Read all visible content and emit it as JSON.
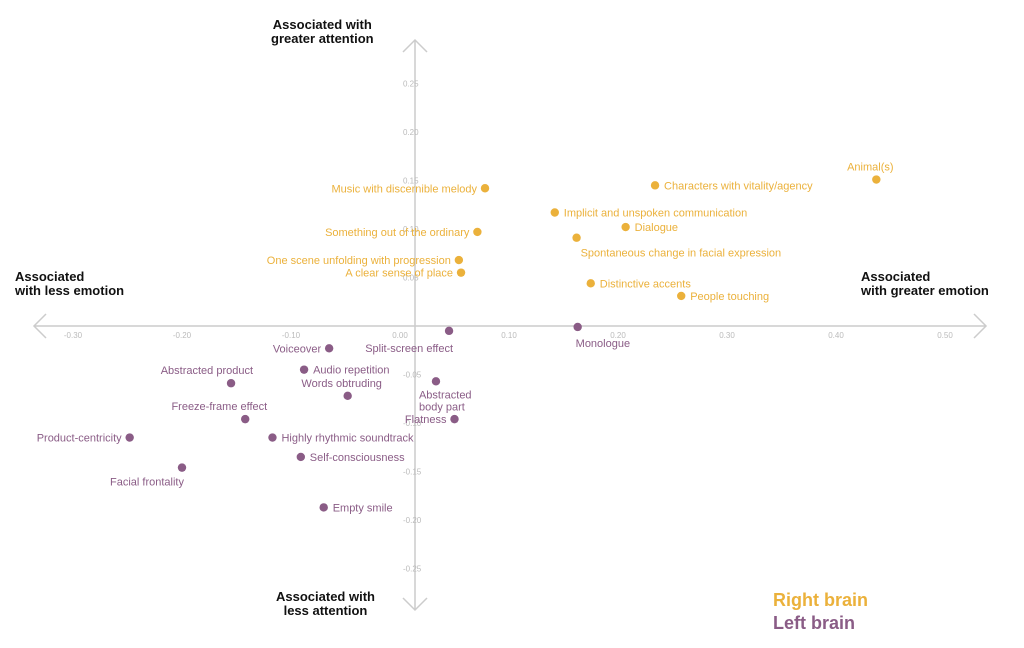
{
  "colors": {
    "right_brain": "#EBB13B",
    "left_brain": "#8A5C86",
    "axis": "#CCCCCC",
    "tick": "#BBBBBB",
    "quadrant_text": "#111111"
  },
  "quadrants": {
    "top": [
      "Associated with",
      "greater attention"
    ],
    "bottom": [
      "Associated with",
      "less attention"
    ],
    "left": [
      "Associated",
      "with less emotion"
    ],
    "right": [
      "Associated",
      "with greater emotion"
    ]
  },
  "legend": {
    "right": "Right brain",
    "left": "Left brain"
  },
  "chart_data": {
    "type": "scatter",
    "xlim": [
      -0.35,
      0.55
    ],
    "ylim": [
      -0.28,
      0.28
    ],
    "x_ticks": [
      {
        "v": -0.3,
        "label": "-0.30"
      },
      {
        "v": -0.2,
        "label": "-0.20"
      },
      {
        "v": -0.1,
        "label": "-0.10"
      },
      {
        "v": 0.0,
        "label": "0.00"
      },
      {
        "v": 0.1,
        "label": "0.10"
      },
      {
        "v": 0.2,
        "label": "0.20"
      },
      {
        "v": 0.3,
        "label": "0.30"
      },
      {
        "v": 0.4,
        "label": "0.40"
      },
      {
        "v": 0.5,
        "label": "0.50"
      }
    ],
    "y_ticks": [
      {
        "v": 0.25,
        "label": "0.25"
      },
      {
        "v": 0.2,
        "label": "0.20"
      },
      {
        "v": 0.15,
        "label": "0.15"
      },
      {
        "v": 0.1,
        "label": "0.10"
      },
      {
        "v": 0.05,
        "label": "0.05"
      },
      {
        "v": -0.05,
        "label": "-0.05"
      },
      {
        "v": -0.1,
        "label": "-0.10"
      },
      {
        "v": -0.15,
        "label": "-0.15"
      },
      {
        "v": -0.2,
        "label": "-0.20"
      },
      {
        "v": -0.25,
        "label": "-0.25"
      }
    ],
    "series": [
      {
        "name": "Right brain",
        "points": [
          {
            "label": "Animal(s)",
            "x": 0.437,
            "y": 0.151,
            "anchor": "above"
          },
          {
            "label": "Characters with vitality/agency",
            "x": 0.234,
            "y": 0.145,
            "anchor": "right"
          },
          {
            "label": "Music with discernible melody",
            "x": 0.078,
            "y": 0.142,
            "anchor": "left"
          },
          {
            "label": "Implicit and unspoken communication",
            "x": 0.142,
            "y": 0.117,
            "anchor": "right"
          },
          {
            "label": "Dialogue",
            "x": 0.207,
            "y": 0.102,
            "anchor": "right"
          },
          {
            "label": "Something out of the ordinary",
            "x": 0.071,
            "y": 0.097,
            "anchor": "left"
          },
          {
            "label": "Spontaneous change in facial expression",
            "x": 0.162,
            "y": 0.091,
            "anchor": "below"
          },
          {
            "label": "One scene unfolding with progression",
            "x": 0.054,
            "y": 0.068,
            "anchor": "left"
          },
          {
            "label": "A clear sense of place",
            "x": 0.056,
            "y": 0.055,
            "anchor": "left"
          },
          {
            "label": "Distinctive accents",
            "x": 0.175,
            "y": 0.044,
            "anchor": "right"
          },
          {
            "label": "People touching",
            "x": 0.258,
            "y": 0.031,
            "anchor": "right"
          }
        ]
      },
      {
        "name": "Left brain",
        "points": [
          {
            "label": "Split-screen effect",
            "x": 0.045,
            "y": -0.005,
            "anchor": "below-left"
          },
          {
            "label": "Monologue",
            "x": 0.163,
            "y": -0.001,
            "anchor": "below"
          },
          {
            "label": "Voiceover",
            "x": -0.065,
            "y": -0.023,
            "anchor": "left"
          },
          {
            "label": "Audio repetition",
            "x": -0.088,
            "y": -0.045,
            "anchor": "right"
          },
          {
            "label": "Abstracted product",
            "x": -0.155,
            "y": -0.059,
            "anchor": "above-left"
          },
          {
            "label": "Abstracted body part",
            "x": 0.033,
            "y": -0.057,
            "anchor": "below"
          },
          {
            "label": "Words obtruding",
            "x": -0.048,
            "y": -0.072,
            "anchor": "above"
          },
          {
            "label": "Freeze-frame effect",
            "x": -0.142,
            "y": -0.096,
            "anchor": "above-left"
          },
          {
            "label": "Flatness",
            "x": 0.05,
            "y": -0.096,
            "anchor": "left"
          },
          {
            "label": "Product-centricity",
            "x": -0.248,
            "y": -0.115,
            "anchor": "left"
          },
          {
            "label": "Highly rhythmic soundtrack",
            "x": -0.117,
            "y": -0.115,
            "anchor": "right"
          },
          {
            "label": "Self-consciousness",
            "x": -0.091,
            "y": -0.135,
            "anchor": "right"
          },
          {
            "label": "Facial frontality",
            "x": -0.2,
            "y": -0.146,
            "anchor": "below-left"
          },
          {
            "label": "Empty smile",
            "x": -0.07,
            "y": -0.187,
            "anchor": "right"
          }
        ]
      }
    ]
  }
}
